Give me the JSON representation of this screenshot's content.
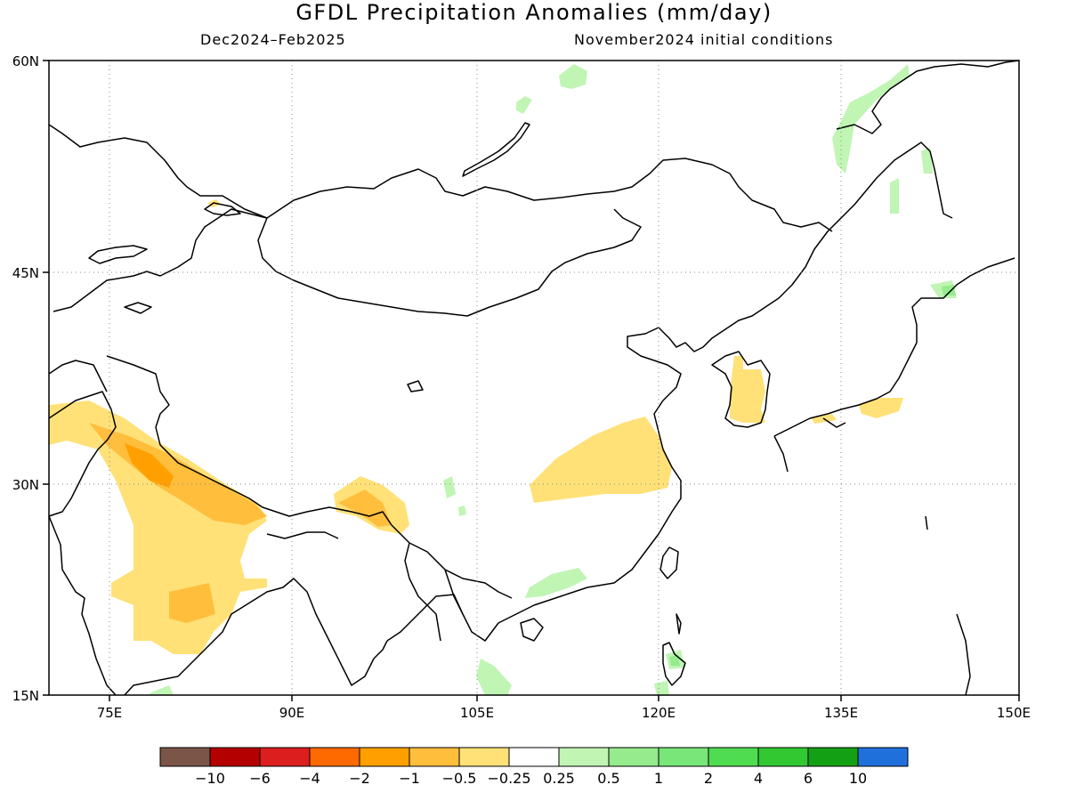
{
  "title": "GFDL Precipitation Anomalies (mm/day)",
  "period": "Dec2024–Feb2025",
  "initial_conditions": "November2024 initial conditions",
  "lat_labels": [
    "60N",
    "45N",
    "30N",
    "15N"
  ],
  "lon_labels": [
    "75E",
    "90E",
    "105E",
    "120E",
    "135E",
    "150E"
  ],
  "colorbar": {
    "colors": [
      "#7a5548",
      "#b40000",
      "#dc1e1e",
      "#ff6a00",
      "#ffa000",
      "#ffbe3c",
      "#ffe178",
      "#ffffff",
      "#c0f5b4",
      "#96eb8c",
      "#78e678",
      "#50dc50",
      "#32c832",
      "#14a014",
      "#2070dc"
    ],
    "labels": [
      "−10",
      "−6",
      "−4",
      "−2",
      "−1",
      "−0.5",
      "−0.25",
      "0.25",
      "0.5",
      "1",
      "2",
      "4",
      "6",
      "10"
    ]
  }
}
